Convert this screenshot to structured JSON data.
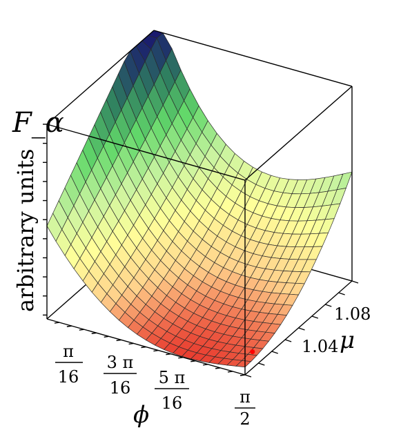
{
  "chart_data": {
    "type": "surface",
    "title": "",
    "zlabel": "F_α",
    "zunits": "arbitrary units",
    "xlabel": "ϕ",
    "ylabel": "μ",
    "x_range": [
      0,
      1.5708
    ],
    "x_ticks": [
      {
        "value": 0.19635,
        "label_num": "π",
        "label_den": "16"
      },
      {
        "value": 0.58905,
        "label_num": "3 π",
        "label_den": "16"
      },
      {
        "value": 0.98175,
        "label_num": "5 π",
        "label_den": "16"
      },
      {
        "value": 1.5708,
        "label_num": "π",
        "label_den": "2"
      }
    ],
    "y_range": [
      1.02,
      1.1
    ],
    "y_ticks": [
      {
        "value": 1.04,
        "label": "1.04"
      },
      {
        "value": 1.08,
        "label": "1.08"
      }
    ],
    "z_range": [
      0,
      1
    ],
    "z_tick_labels_shown": false,
    "surface_shape": "bowl: high at ϕ=0, minimum near ϕ≈π/2 at low μ, rising toward large μ",
    "marked_point": {
      "x": 1.5708,
      "y": 1.03,
      "z": 0.05,
      "color": "#ff0000"
    },
    "colormap": [
      "#1a1a6e",
      "#2f7f60",
      "#62d86a",
      "#c8f3a0",
      "#ffff9a",
      "#ffd28c",
      "#e83a2e"
    ],
    "grid": true
  }
}
